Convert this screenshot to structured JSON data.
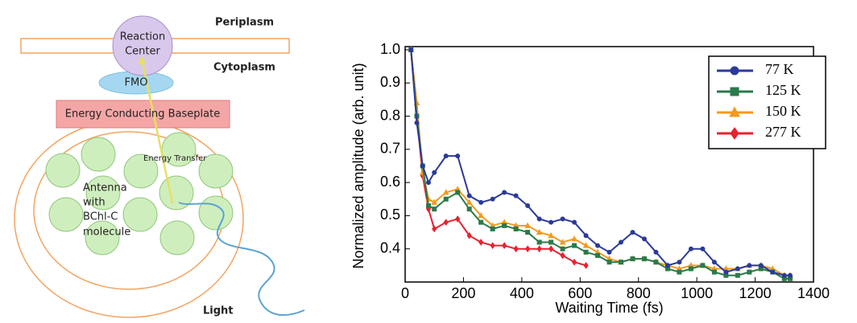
{
  "diagram": {
    "periplasm": "Periplasm",
    "cytoplasm": "Cytoplasm",
    "reaction_center": [
      "Reaction",
      "Center"
    ],
    "fmo": "FMO",
    "baseplate": "Energy Conducting Baseplate",
    "energy_transfer": "Energy Transfer",
    "antenna": [
      "Antenna",
      "with",
      "BChl-C",
      "molecule"
    ],
    "light": "Light"
  },
  "chart_data": {
    "type": "line",
    "xlabel": "Waiting Time (fs)",
    "ylabel": "Normalized amplitude (arb. unit)",
    "xlim": [
      0,
      1400
    ],
    "xticks": [
      0,
      200,
      400,
      600,
      800,
      1000,
      1200,
      1400
    ],
    "ylim": [
      0.3,
      1.0
    ],
    "yticks": [
      0.4,
      0.5,
      0.6,
      0.7,
      0.8,
      0.9,
      {
        "value": 1.0,
        "label": "1.0"
      }
    ],
    "legend": "upper right",
    "x": [
      20,
      40,
      60,
      80,
      100,
      140,
      180,
      220,
      260,
      300,
      340,
      380,
      420,
      460,
      500,
      540,
      580,
      620,
      660,
      700,
      740,
      780,
      820,
      860,
      900,
      940,
      980,
      1020,
      1060,
      1100,
      1140,
      1180,
      1220,
      1260,
      1300,
      1320
    ],
    "series": [
      {
        "name": "77 K",
        "color": "#2b3a9a",
        "marker": "circle",
        "values": [
          1.0,
          0.78,
          0.65,
          0.6,
          0.63,
          0.68,
          0.68,
          0.56,
          0.54,
          0.55,
          0.57,
          0.56,
          0.53,
          0.49,
          0.48,
          0.49,
          0.48,
          0.44,
          0.41,
          0.39,
          0.42,
          0.45,
          0.43,
          0.39,
          0.35,
          0.36,
          0.4,
          0.4,
          0.36,
          0.33,
          0.34,
          0.35,
          0.35,
          0.33,
          0.32,
          0.32
        ]
      },
      {
        "name": "125 K",
        "color": "#2a7a4a",
        "marker": "square",
        "values": [
          1.0,
          0.8,
          0.65,
          0.53,
          0.52,
          0.55,
          0.57,
          0.52,
          0.48,
          0.46,
          0.47,
          0.46,
          0.45,
          0.42,
          0.42,
          0.4,
          0.41,
          0.39,
          0.38,
          0.36,
          0.36,
          0.37,
          0.37,
          0.36,
          0.34,
          0.33,
          0.34,
          0.35,
          0.33,
          0.32,
          0.32,
          0.33,
          0.34,
          0.33,
          0.31,
          0.31
        ]
      },
      {
        "name": "150 K",
        "color": "#f39a1e",
        "marker": "triangle",
        "values": [
          1.0,
          0.84,
          0.63,
          0.55,
          0.54,
          0.57,
          0.58,
          0.54,
          0.5,
          0.47,
          0.48,
          0.47,
          0.47,
          0.45,
          0.44,
          0.42,
          0.43,
          0.41,
          0.39,
          0.37,
          0.36,
          0.37,
          0.37,
          0.36,
          0.35,
          0.34,
          0.35,
          0.35,
          0.34,
          0.34,
          0.34,
          0.35,
          0.35,
          0.34,
          0.32,
          0.32
        ]
      },
      {
        "name": "277 K",
        "color": "#e8222e",
        "marker": "diamond",
        "values": [
          1.0,
          0.8,
          0.62,
          0.52,
          0.46,
          0.48,
          0.49,
          0.44,
          0.42,
          0.41,
          0.41,
          0.4,
          0.4,
          0.4,
          0.4,
          0.38,
          0.36,
          0.35,
          null,
          null,
          null,
          null,
          null,
          null,
          null,
          null,
          null,
          null,
          null,
          null,
          null,
          null,
          null,
          null,
          null,
          null
        ]
      }
    ]
  }
}
